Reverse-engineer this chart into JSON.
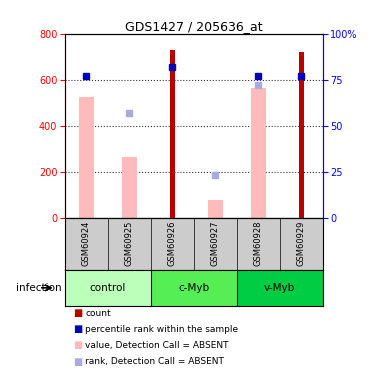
{
  "title": "GDS1427 / 205636_at",
  "samples": [
    "GSM60924",
    "GSM60925",
    "GSM60926",
    "GSM60927",
    "GSM60928",
    "GSM60929"
  ],
  "count_values": [
    0,
    0,
    730,
    0,
    0,
    720
  ],
  "rank_values_pct": [
    77,
    0,
    82,
    0,
    77,
    77
  ],
  "pink_bar_values": [
    525,
    265,
    0,
    75,
    565,
    0
  ],
  "blue_dot_values": [
    0,
    455,
    0,
    185,
    575,
    0
  ],
  "ylim_left": [
    0,
    800
  ],
  "ylim_right": [
    0,
    100
  ],
  "yticks_left": [
    0,
    200,
    400,
    600,
    800
  ],
  "yticks_right": [
    0,
    25,
    50,
    75,
    100
  ],
  "count_color": "#bb0000",
  "rank_color": "#0000bb",
  "pink_bar_color": "#ffbbbb",
  "blue_dot_color": "#aaaadd",
  "group_colors": [
    "#bbffbb",
    "#55ee55",
    "#00cc44"
  ],
  "group_labels": [
    "control",
    "c-Myb",
    "v-Myb"
  ],
  "group_ranges": [
    [
      0,
      2
    ],
    [
      2,
      4
    ],
    [
      4,
      6
    ]
  ],
  "sample_bg_color": "#cccccc",
  "infection_label": "infection"
}
